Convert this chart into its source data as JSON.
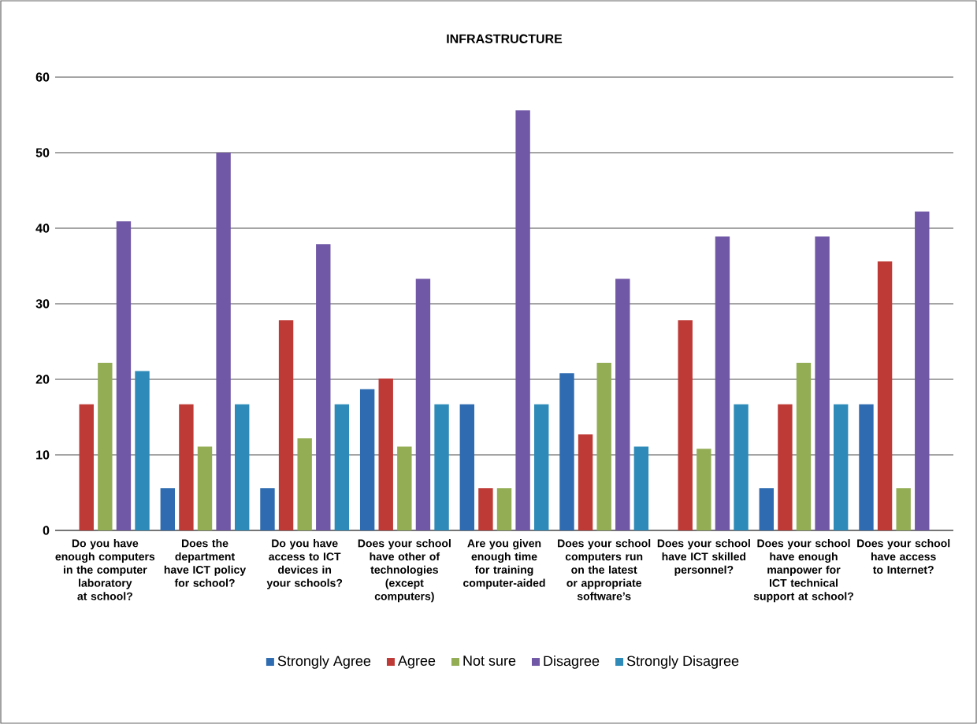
{
  "chart_data": {
    "type": "bar",
    "title": "INFRASTRUCTURE",
    "categories": [
      "Do you have enough computers in the computer laboratory at school?",
      "Does the department have ICT policy for school?",
      "Do you have access to ICT devices in your schools?",
      "Does your school have other of technologies (except computers)",
      "Are you given enough time for training computer-aided",
      "Does your school computers run on the latest or appropriate software’s",
      "Does your school have ICT skilled personnel?",
      "Does your school have enough manpower for ICT technical support at school?",
      "Does your school have access to Internet?"
    ],
    "series": [
      {
        "name": "Strongly Agree",
        "color": "#2e6bb0",
        "values": [
          0,
          5.6,
          5.6,
          18.7,
          16.7,
          20.8,
          0,
          5.6,
          16.7
        ]
      },
      {
        "name": "Agree",
        "color": "#be3a36",
        "values": [
          16.7,
          16.7,
          27.8,
          20.1,
          5.6,
          12.7,
          27.8,
          16.7,
          35.6
        ]
      },
      {
        "name": "Not sure",
        "color": "#93ad55",
        "values": [
          22.2,
          11.1,
          12.2,
          11.1,
          5.6,
          22.2,
          10.8,
          22.2,
          5.6
        ]
      },
      {
        "name": "Disagree",
        "color": "#7158a6",
        "values": [
          40.9,
          50,
          37.9,
          33.3,
          55.6,
          33.3,
          38.9,
          38.9,
          42.2
        ]
      },
      {
        "name": "Strongly  Disagree",
        "color": "#2e8ab8",
        "values": [
          21.1,
          16.7,
          16.7,
          16.7,
          16.7,
          11.1,
          16.7,
          16.7,
          0
        ]
      }
    ],
    "ylim": [
      0,
      60
    ],
    "yticks": [
      0,
      10,
      20,
      30,
      40,
      50,
      60
    ],
    "grid": "y",
    "legend": "bottom"
  }
}
